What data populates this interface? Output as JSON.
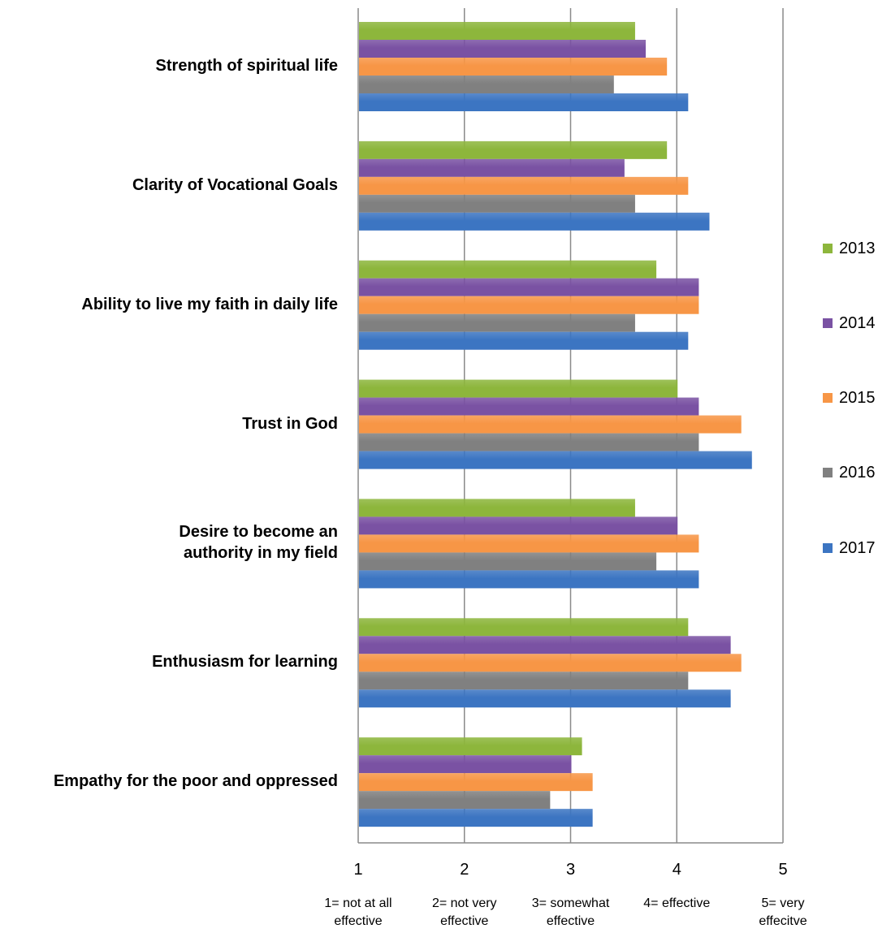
{
  "chart_data": {
    "type": "bar",
    "orientation": "horizontal",
    "categories": [
      "Strength of spiritual life",
      "Clarity of Vocational Goals",
      "Ability to live my faith in daily life",
      "Trust in God",
      "Desire to become an authority in my field",
      "Enthusiasm for learning",
      "Empathy for the poor and oppressed"
    ],
    "category_lines": [
      [
        "Strength of spiritual life"
      ],
      [
        "Clarity of Vocational Goals"
      ],
      [
        "Ability to live my faith in daily life"
      ],
      [
        "Trust in God"
      ],
      [
        "Desire to become an",
        "authority in my field"
      ],
      [
        "Enthusiasm for learning"
      ],
      [
        "Empathy for the poor and oppressed"
      ]
    ],
    "series": [
      {
        "name": "2013",
        "color": "#8DB63C",
        "values": [
          3.6,
          3.9,
          3.8,
          4.0,
          3.6,
          4.1,
          3.1
        ]
      },
      {
        "name": "2014",
        "color": "#7A52A3",
        "values": [
          3.7,
          3.5,
          4.2,
          4.2,
          4.0,
          4.5,
          3.0
        ]
      },
      {
        "name": "2015",
        "color": "#F79646",
        "values": [
          3.9,
          4.1,
          4.2,
          4.6,
          4.2,
          4.6,
          3.2
        ]
      },
      {
        "name": "2016",
        "color": "#808080",
        "values": [
          3.4,
          3.6,
          3.6,
          4.2,
          3.8,
          4.1,
          2.8
        ]
      },
      {
        "name": "2017",
        "color": "#3C75C2",
        "values": [
          4.1,
          4.3,
          4.1,
          4.7,
          4.2,
          4.5,
          3.2
        ]
      }
    ],
    "xlim": [
      1,
      5
    ],
    "x_ticks": [
      "1",
      "2",
      "3",
      "4",
      "5"
    ],
    "x_tick_descriptions": [
      [
        "1= not at all",
        "effective"
      ],
      [
        "2= not very",
        "effective"
      ],
      [
        "3= somewhat",
        "effective"
      ],
      [
        "4= effective"
      ],
      [
        "5= very",
        "effecitve"
      ]
    ],
    "grid": "vertical",
    "legend_position": "right",
    "title": "",
    "xlabel": "",
    "ylabel": ""
  }
}
